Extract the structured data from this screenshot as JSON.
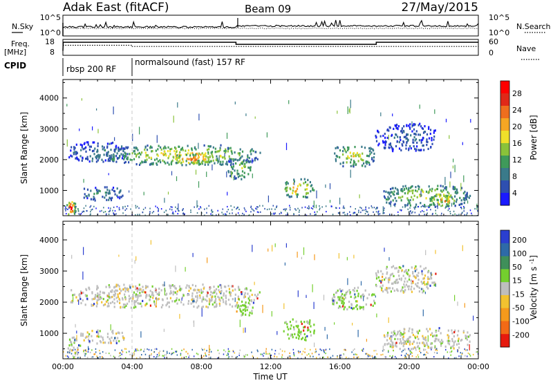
{
  "header": {
    "title": "Adak East (fitACF)",
    "beam": "Beam 09",
    "date": "27/May/2015"
  },
  "top_panels": {
    "nsky_label": "N.Sky",
    "nsky_ticks": [
      "10^5",
      "10^0"
    ],
    "nsearch_label": "N.Search",
    "nsearch_ticks": [
      "10^5",
      "10^0"
    ],
    "freq_label": "Freq.",
    "freq_unit": "[MHz]",
    "freq_ticks": [
      "18",
      "8"
    ],
    "nave_label": "Nave",
    "nave_ticks": [
      "60",
      "0"
    ],
    "cpid_label": "CPID",
    "cpid_segments": [
      {
        "label": "rbsp 200 RF",
        "start_hour": 0,
        "end_hour": 4
      },
      {
        "label": "normalsound (fast) 157 RF",
        "start_hour": 4,
        "end_hour": 24
      }
    ]
  },
  "chart_data": [
    {
      "type": "heatmap",
      "panel": "power",
      "xlabel": "",
      "ylabel": "Slant Range [km]",
      "x_unit": "hours UT",
      "xlim": [
        0,
        24
      ],
      "ylim": [
        180,
        4600
      ],
      "yticks": [
        1000,
        2000,
        3000,
        4000
      ],
      "colorbar": {
        "label": "Power [dB]",
        "ticks": [
          "4",
          "8",
          "12",
          "16",
          "20",
          "24",
          "28"
        ],
        "colors": [
          "#1a1aff",
          "#2e4fb0",
          "#3a7a8a",
          "#3f9a5a",
          "#8ac23a",
          "#f0e02a",
          "#f6a623",
          "#ef6e1e",
          "#e02818",
          "#ff0000"
        ]
      },
      "echo_regions": [
        {
          "t_start": 0.2,
          "t_end": 0.7,
          "range_min": 200,
          "range_max": 700,
          "level_db": 28
        },
        {
          "t_start": 0.3,
          "t_end": 3.7,
          "range_min": 1950,
          "range_max": 2600,
          "level_db": 8
        },
        {
          "t_start": 1.0,
          "t_end": 3.5,
          "range_min": 700,
          "range_max": 1150,
          "level_db": 10
        },
        {
          "t_start": 2.5,
          "t_end": 11.5,
          "range_min": 1850,
          "range_max": 2500,
          "level_db": 18
        },
        {
          "t_start": 6.0,
          "t_end": 9.0,
          "range_min": 1900,
          "range_max": 2200,
          "level_db": 24
        },
        {
          "t_start": 9.5,
          "t_end": 11.0,
          "range_min": 1400,
          "range_max": 2100,
          "level_db": 14
        },
        {
          "t_start": 12.7,
          "t_end": 14.5,
          "range_min": 800,
          "range_max": 1400,
          "level_db": 20
        },
        {
          "t_start": 15.5,
          "t_end": 18.0,
          "range_min": 1800,
          "range_max": 2500,
          "level_db": 16
        },
        {
          "t_start": 18.0,
          "t_end": 21.5,
          "range_min": 2300,
          "range_max": 3200,
          "level_db": 6
        },
        {
          "t_start": 18.5,
          "t_end": 23.5,
          "range_min": 500,
          "range_max": 1200,
          "level_db": 16
        },
        {
          "t_start": 21.0,
          "t_end": 22.8,
          "range_min": 500,
          "range_max": 900,
          "level_db": 22
        }
      ]
    },
    {
      "type": "heatmap",
      "panel": "velocity",
      "xlabel": "Time UT",
      "ylabel": "Slant Range [km]",
      "x_unit": "hours UT",
      "xlim": [
        0,
        24
      ],
      "ylim": [
        180,
        4600
      ],
      "xticks": [
        "00:00",
        "04:00",
        "08:00",
        "12:00",
        "16:00",
        "20:00",
        "00:00"
      ],
      "yticks": [
        1000,
        2000,
        3000,
        4000
      ],
      "colorbar": {
        "label": "Velocity [m s^-1]",
        "ticks": [
          "200",
          "100",
          "50",
          "15",
          "-15",
          "-50",
          "-100",
          "-200"
        ],
        "colors": [
          "#2b3fd0",
          "#2e6aa8",
          "#3f8f5a",
          "#74cf2e",
          "#bebebe",
          "#f2c230",
          "#f59a1c",
          "#f26a16",
          "#e61a0e"
        ]
      },
      "echo_regions": [
        {
          "t_start": 0.2,
          "t_end": 1.0,
          "range_min": 200,
          "range_max": 900,
          "velocity": 0
        },
        {
          "t_start": 0.3,
          "t_end": 11.5,
          "range_min": 1850,
          "range_max": 2600,
          "velocity": 0
        },
        {
          "t_start": 1.0,
          "t_end": 3.5,
          "range_min": 700,
          "range_max": 1150,
          "velocity": 0
        },
        {
          "t_start": 10.0,
          "t_end": 11.0,
          "range_min": 1600,
          "range_max": 2100,
          "velocity": 30
        },
        {
          "t_start": 12.7,
          "t_end": 14.5,
          "range_min": 800,
          "range_max": 1500,
          "velocity": 30
        },
        {
          "t_start": 15.5,
          "t_end": 18.0,
          "range_min": 1800,
          "range_max": 2500,
          "velocity": 20
        },
        {
          "t_start": 18.0,
          "t_end": 21.5,
          "range_min": 2300,
          "range_max": 3200,
          "velocity": 0
        },
        {
          "t_start": 18.5,
          "t_end": 23.5,
          "range_min": 500,
          "range_max": 1200,
          "velocity": 0
        }
      ]
    }
  ]
}
